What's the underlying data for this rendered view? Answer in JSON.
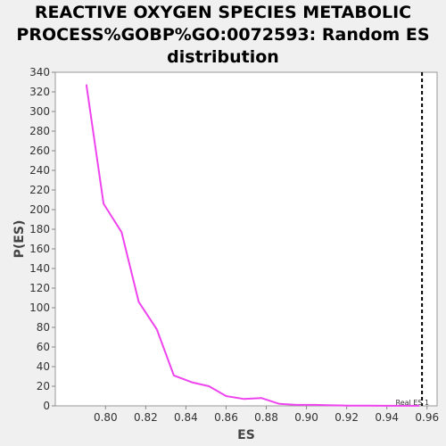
{
  "chart_data": {
    "type": "line",
    "title_lines": [
      "REACTIVE OXYGEN SPECIES METABOLIC",
      "PROCESS%GOBP%GO:0072593: Random ES",
      "distribution"
    ],
    "xlabel": "ES",
    "ylabel": "P(ES)",
    "xlim": [
      0.775,
      0.965
    ],
    "ylim": [
      0,
      340
    ],
    "x_ticks": [
      0.8,
      0.82,
      0.84,
      0.86,
      0.88,
      0.9,
      0.92,
      0.94,
      0.96
    ],
    "x_tick_labels": [
      "0.80",
      "0.82",
      "0.84",
      "0.86",
      "0.88",
      "0.90",
      "0.92",
      "0.94",
      "0.96"
    ],
    "y_ticks": [
      0,
      20,
      40,
      60,
      80,
      100,
      120,
      140,
      160,
      180,
      200,
      220,
      240,
      260,
      280,
      300,
      320,
      340
    ],
    "grid": false,
    "series": [
      {
        "color": "#ee44ee",
        "x": [
          0.7905,
          0.799,
          0.808,
          0.8165,
          0.8255,
          0.834,
          0.843,
          0.8515,
          0.86,
          0.869,
          0.8775,
          0.8865,
          0.895,
          0.904,
          0.9125,
          0.921,
          0.93,
          0.939,
          0.947,
          0.956
        ],
        "values": [
          327,
          206,
          177,
          106,
          78,
          31,
          24,
          20,
          10,
          7,
          8,
          2,
          1,
          1,
          0.5,
          0.3,
          0.2,
          0.1,
          0.1,
          0.1
        ]
      }
    ],
    "annotations": [
      {
        "label": "Real ES 1",
        "x": 0.9575,
        "line_color": "#000000"
      }
    ]
  }
}
